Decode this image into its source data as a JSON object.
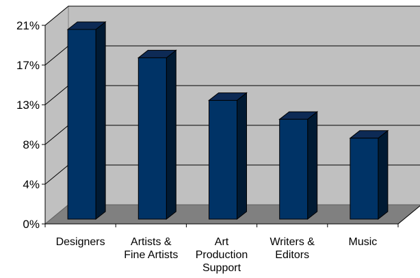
{
  "chart_data": {
    "type": "bar",
    "title": "",
    "xlabel": "",
    "ylabel": "",
    "categories": [
      "Designers",
      "Artists & Fine Artists",
      "Art Production Support",
      "Writers & Editors",
      "Music"
    ],
    "category_lines": [
      [
        "Designers"
      ],
      [
        "Artists &",
        "Fine Artists"
      ],
      [
        "Art",
        "Production",
        "Support"
      ],
      [
        "Writers &",
        "Editors"
      ],
      [
        "Music"
      ]
    ],
    "values": [
      21,
      18,
      13.5,
      11.5,
      9.5
    ],
    "ylim": [
      0,
      21
    ],
    "yticks": [
      0,
      4.2,
      8.4,
      12.6,
      16.8,
      21
    ],
    "ytick_labels": [
      "0%",
      "4%",
      "8%",
      "13%",
      "17%",
      "21%"
    ],
    "grid": true,
    "three_d": true,
    "colors": {
      "bar_front": "#003366",
      "bar_top": "#0d2a55",
      "bar_side": "#001a33",
      "wall": "#c0c0c0",
      "floor": "#808080"
    }
  }
}
